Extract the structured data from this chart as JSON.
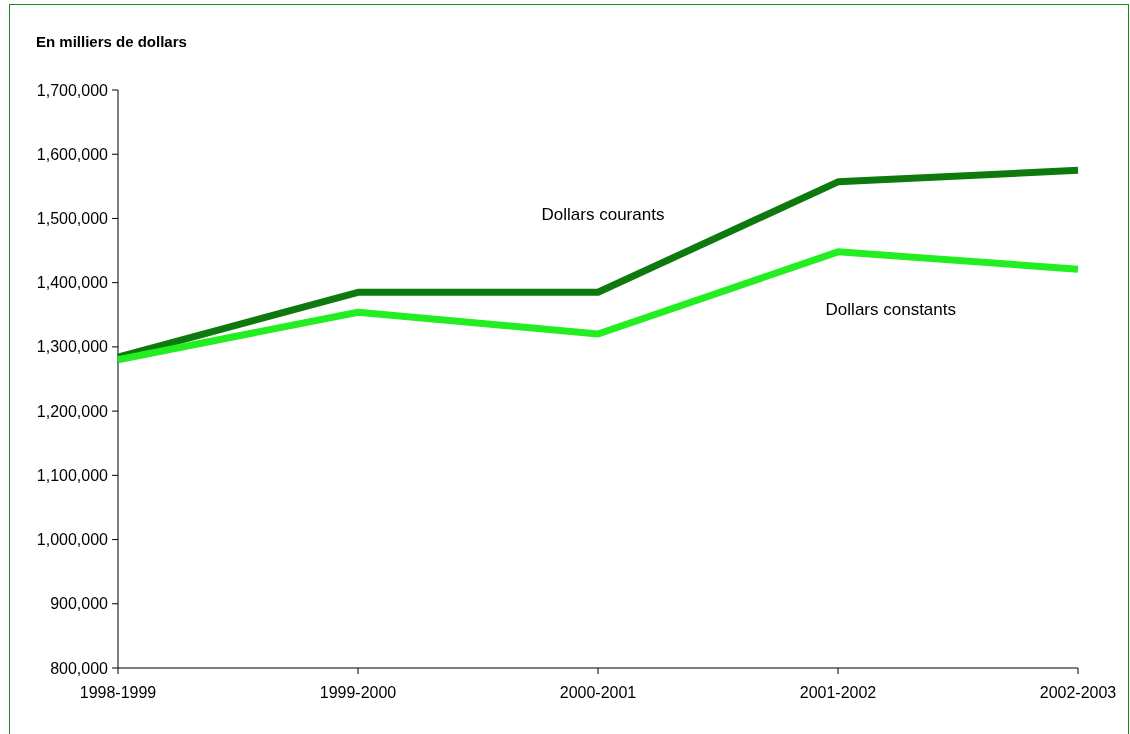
{
  "chart_data": {
    "type": "line",
    "ylabel": "En milliers de dollars",
    "categories": [
      "1998-1999",
      "1999-2000",
      "2000-2001",
      "2001-2002",
      "2002-2003"
    ],
    "series": [
      {
        "name": "Dollars courants",
        "color": "#0e7a0e",
        "values": [
          1284000,
          1385000,
          1385000,
          1557000,
          1575000
        ]
      },
      {
        "name": "Dollars constants",
        "color": "#22ee22",
        "values": [
          1280000,
          1354000,
          1320000,
          1448000,
          1421000
        ]
      }
    ],
    "ylim": [
      800000,
      1700000
    ],
    "yticks": [
      {
        "value": 800000,
        "label": "800,000"
      },
      {
        "value": 900000,
        "label": "900,000"
      },
      {
        "value": 1000000,
        "label": "1,000,000"
      },
      {
        "value": 1100000,
        "label": "1,100,000"
      },
      {
        "value": 1200000,
        "label": "1,200,000"
      },
      {
        "value": 1300000,
        "label": "1,300,000"
      },
      {
        "value": 1400000,
        "label": "1,400,000"
      },
      {
        "value": 1500000,
        "label": "1,500,000"
      },
      {
        "value": 1600000,
        "label": "1,600,000"
      },
      {
        "value": 1700000,
        "label": "1,700,000"
      }
    ],
    "grid": false,
    "legend": false,
    "marker": "none",
    "line_style": "solid"
  }
}
